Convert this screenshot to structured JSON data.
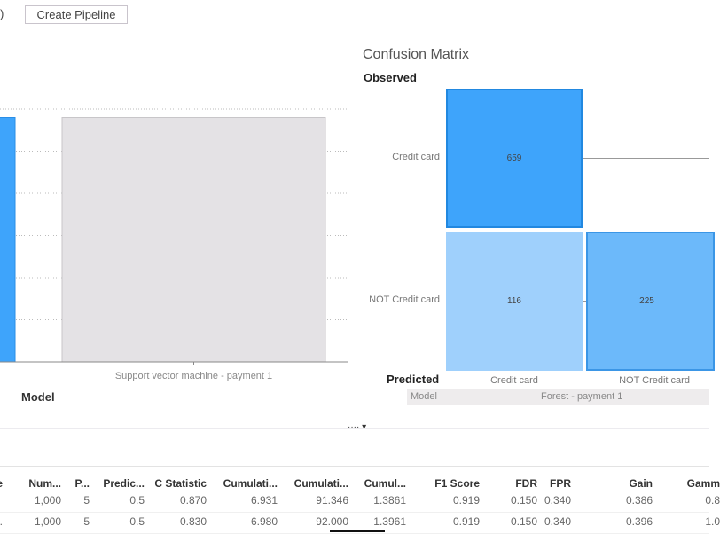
{
  "toolbar": {
    "paren_text": ")",
    "create_pipeline_label": "Create Pipeline"
  },
  "chart_data": [
    {
      "type": "bar",
      "categories": [
        "",
        "Support vector machine - payment 1"
      ],
      "values": [
        5.8,
        5.8
      ],
      "series_colors": [
        "#3ea4fb",
        "#e4e2e5"
      ],
      "xlabel": "Model",
      "ylabel": "",
      "ylim": [
        0,
        6
      ],
      "grid": true
    },
    {
      "type": "heatmap",
      "title": "Confusion Matrix",
      "row_axis_label": "Observed",
      "col_axis_label": "Predicted",
      "rows": [
        "Credit card",
        "NOT Credit card"
      ],
      "cols": [
        "Credit card",
        "NOT Credit card"
      ],
      "values": [
        [
          659,
          null
        ],
        [
          116,
          225
        ]
      ],
      "colors": {
        "high": "#3ea4fb",
        "mid": "#6cb9fa",
        "low": "#9fd0fc"
      },
      "filter_label": "Model",
      "filter_value": "Forest - payment 1"
    }
  ],
  "splitter": {
    "handle": "···· ▾"
  },
  "table": {
    "columns": [
      "e",
      "Num...",
      "P...",
      "Predic...",
      "C Statistic",
      "Cumulati...",
      "Cumulati...",
      "Cumul...",
      "F1 Score",
      "FDR",
      "FPR",
      "Gain",
      "Gamm"
    ],
    "rows": [
      [
        "",
        "1,000",
        "5",
        "0.5",
        "0.870",
        "6.931",
        "91.346",
        "1.3861",
        "0.919",
        "0.150",
        "0.340",
        "0.386",
        "0.8"
      ],
      [
        "...",
        "1,000",
        "5",
        "0.5",
        "0.830",
        "6.980",
        "92.000",
        "1.3961",
        "0.919",
        "0.150",
        "0.340",
        "0.396",
        "1.0"
      ]
    ]
  }
}
